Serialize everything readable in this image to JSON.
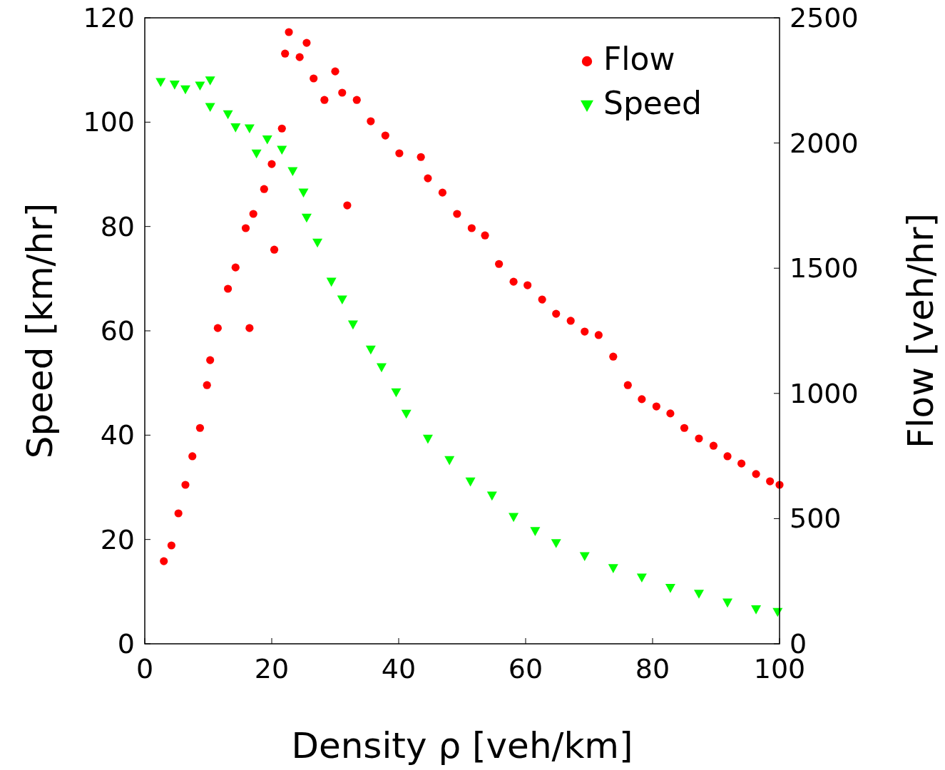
{
  "chart_data": {
    "type": "scatter",
    "xlabel": "Density ρ [veh/km]",
    "ylabel": "Speed [km/hr]",
    "y2label": "Flow [veh/hr]",
    "xlim": [
      0,
      100
    ],
    "xticks": [
      0,
      20,
      40,
      60,
      80,
      100
    ],
    "ylim": [
      0,
      120
    ],
    "yticks": [
      0,
      20,
      40,
      60,
      80,
      100,
      120
    ],
    "y2lim": [
      0,
      2500
    ],
    "y2ticks": [
      0,
      500,
      1000,
      1500,
      2000,
      2500
    ],
    "legend": "top right",
    "grid": false,
    "series": [
      {
        "name": "Flow",
        "color": "#ff0000",
        "marker": "circle",
        "axis": "y2",
        "x": [
          3,
          4.2,
          5.3,
          6.4,
          7.5,
          8.7,
          9.8,
          10.3,
          11.5,
          13.1,
          14.3,
          15.9,
          16.5,
          17.1,
          18.8,
          20,
          20.4,
          21.6,
          22.1,
          22.7,
          24.4,
          25.5,
          26.6,
          28.3,
          30,
          31.1,
          31.9,
          33.4,
          35.6,
          37.9,
          40.1,
          43.5,
          44.6,
          46.9,
          49.2,
          51.5,
          53.6,
          55.8,
          58.1,
          60.3,
          62.6,
          64.8,
          67.1,
          69.3,
          71.5,
          73.8,
          76.1,
          78.3,
          80.6,
          82.8,
          85,
          87.3,
          89.6,
          91.8,
          94,
          96.3,
          98.5,
          100
        ],
        "values": [
          330,
          393,
          521,
          635,
          749,
          862,
          1033,
          1133,
          1261,
          1418,
          1503,
          1660,
          1261,
          1717,
          1816,
          1916,
          1574,
          2058,
          2357,
          2443,
          2343,
          2400,
          2258,
          2172,
          2286,
          2201,
          1751,
          2172,
          2087,
          2030,
          1959,
          1944,
          1859,
          1802,
          1717,
          1660,
          1631,
          1517,
          1446,
          1432,
          1375,
          1318,
          1290,
          1247,
          1233,
          1147,
          1033,
          977,
          948,
          920,
          862,
          820,
          791,
          749,
          720,
          678,
          649,
          635
        ]
      },
      {
        "name": "Speed",
        "color": "#00ff00",
        "marker": "triangle",
        "x": [
          2.5,
          4.7,
          6.4,
          8.7,
          10.3,
          10.3,
          13.1,
          14.3,
          16.5,
          17.6,
          19.3,
          21.6,
          23.3,
          25,
          25.5,
          27.2,
          29.4,
          31.1,
          32.8,
          35.6,
          37.3,
          39.6,
          41.2,
          44.6,
          48,
          51.3,
          54.7,
          58.1,
          61.5,
          64.8,
          69.3,
          73.8,
          78.3,
          82.8,
          87.3,
          91.8,
          96.3,
          99.7
        ],
        "values": [
          107.7,
          107.2,
          106.3,
          107,
          108,
          102.9,
          101.5,
          99,
          98.8,
          94,
          96.7,
          94.7,
          90.6,
          86.5,
          81.7,
          76.9,
          69.4,
          66,
          61.2,
          56.4,
          53,
          48.2,
          44.1,
          39.3,
          35.2,
          31.1,
          28.4,
          24.3,
          21.6,
          19.3,
          16.8,
          14.5,
          12.7,
          10.7,
          9.6,
          7.9,
          6.6,
          6.1
        ]
      }
    ]
  }
}
